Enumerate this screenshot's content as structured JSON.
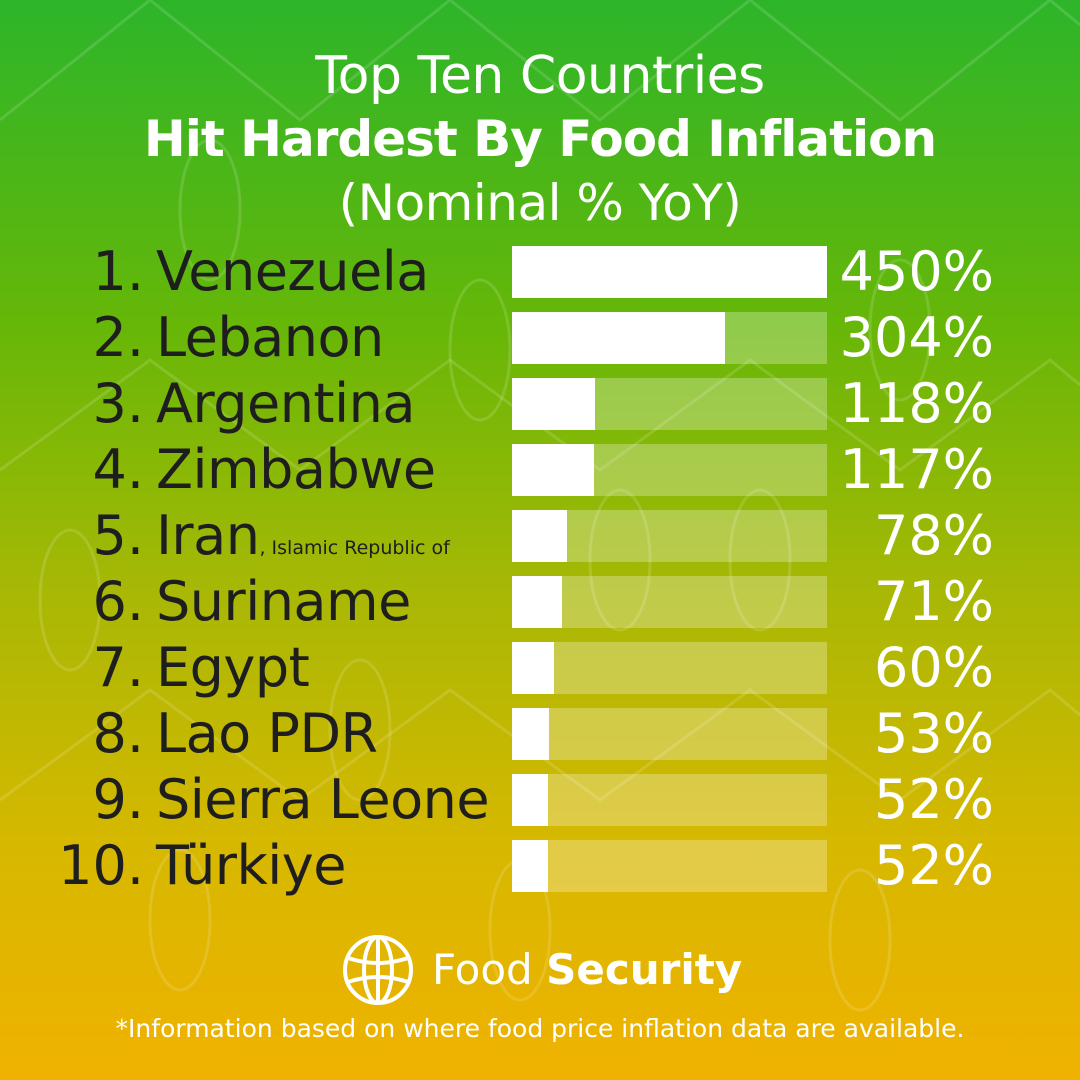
{
  "header": {
    "title_line1": "Top Ten Countries",
    "title_line2": "Hit Hardest By Food Inflation",
    "title_line3": "(Nominal % YoY)"
  },
  "chart_data": {
    "type": "bar",
    "orientation": "horizontal",
    "title": "Top Ten Countries Hit Hardest By Food Inflation (Nominal % YoY)",
    "xlim": [
      0,
      450
    ],
    "grid": false,
    "legend": "none",
    "rows": [
      {
        "rank": "1.",
        "country": "Venezuela",
        "suffix": "",
        "value": 450,
        "label": "450%"
      },
      {
        "rank": "2.",
        "country": "Lebanon",
        "suffix": "",
        "value": 304,
        "label": "304%"
      },
      {
        "rank": "3.",
        "country": "Argentina",
        "suffix": "",
        "value": 118,
        "label": "118%"
      },
      {
        "rank": "4.",
        "country": "Zimbabwe",
        "suffix": "",
        "value": 117,
        "label": "117%"
      },
      {
        "rank": "5.",
        "country": "Iran",
        "suffix": ", Islamic Republic of",
        "value": 78,
        "label": "78%"
      },
      {
        "rank": "6.",
        "country": "Suriname",
        "suffix": "",
        "value": 71,
        "label": "71%"
      },
      {
        "rank": "7.",
        "country": "Egypt",
        "suffix": "",
        "value": 60,
        "label": "60%"
      },
      {
        "rank": "8.",
        "country": "Lao PDR",
        "suffix": "",
        "value": 53,
        "label": "53%"
      },
      {
        "rank": "9.",
        "country": "Sierra Leone",
        "suffix": "",
        "value": 52,
        "label": "52%"
      },
      {
        "rank": "10.",
        "country": "Türkiye",
        "suffix": "",
        "value": 52,
        "label": "52%"
      }
    ]
  },
  "brand": {
    "name_light": "Food",
    "name_bold": "Security",
    "icon": "globe-icon"
  },
  "footnote": "*Information based on where food price inflation data are available.",
  "colors": {
    "gradient_top": "#2db52a",
    "gradient_bottom": "#f0b200",
    "bar_fill": "#ffffff",
    "country_text": "#1e1e1e"
  }
}
